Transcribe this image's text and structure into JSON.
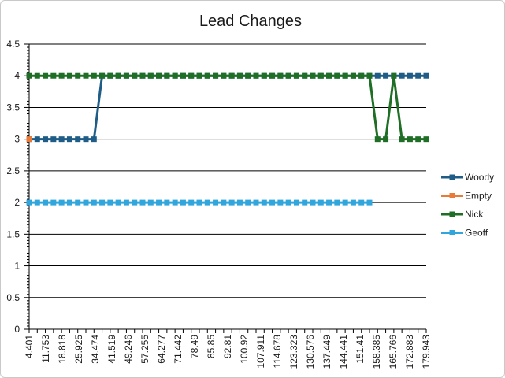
{
  "chart_data": {
    "type": "line",
    "title": "Lead Changes",
    "xlabel": "",
    "ylabel": "",
    "ylim": [
      0,
      4.5
    ],
    "ystep": 0.5,
    "y_tick_labels": [
      "0",
      "0.5",
      "1",
      "1.5",
      "2",
      "2.5",
      "3",
      "3.5",
      "4",
      "4.5"
    ],
    "x_tick_labels": [
      "4.401",
      "11.753",
      "18.818",
      "25.925",
      "34.474",
      "41.519",
      "49.246",
      "57.255",
      "64.277",
      "71.442",
      "78.49",
      "85.85",
      "92.81",
      "100.92",
      "107.911",
      "114.678",
      "123.323",
      "130.576",
      "137.449",
      "144.441",
      "151.41",
      "158.385",
      "165.766",
      "172.883",
      "179.943"
    ],
    "point_count": 50,
    "grid": true,
    "legend_position": "right",
    "series": [
      {
        "name": "Woody",
        "color": "#1f5d86",
        "values": [
          3,
          3,
          3,
          3,
          3,
          3,
          3,
          3,
          3,
          4,
          4,
          4,
          4,
          4,
          4,
          4,
          4,
          4,
          4,
          4,
          4,
          4,
          4,
          4,
          4,
          4,
          4,
          4,
          4,
          4,
          4,
          4,
          4,
          4,
          4,
          4,
          4,
          4,
          4,
          4,
          4,
          4,
          4,
          4,
          4,
          4,
          4,
          4,
          4,
          4
        ]
      },
      {
        "name": "Empty",
        "color": "#e87b3a",
        "values": [
          3,
          null,
          null,
          null,
          null,
          null,
          null,
          null,
          null,
          null,
          null,
          null,
          null,
          null,
          null,
          null,
          null,
          null,
          null,
          null,
          null,
          null,
          null,
          null,
          null,
          null,
          null,
          null,
          null,
          null,
          null,
          null,
          null,
          null,
          null,
          null,
          null,
          null,
          null,
          null,
          null,
          null,
          null,
          null,
          null,
          null,
          null,
          null,
          null,
          null
        ]
      },
      {
        "name": "Nick",
        "color": "#1e6e25",
        "values": [
          4,
          4,
          4,
          4,
          4,
          4,
          4,
          4,
          4,
          4,
          4,
          4,
          4,
          4,
          4,
          4,
          4,
          4,
          4,
          4,
          4,
          4,
          4,
          4,
          4,
          4,
          4,
          4,
          4,
          4,
          4,
          4,
          4,
          4,
          4,
          4,
          4,
          4,
          4,
          4,
          4,
          4,
          4,
          3,
          3,
          4,
          3,
          3,
          3,
          3
        ]
      },
      {
        "name": "Geoff",
        "color": "#31a6dc",
        "values": [
          2,
          2,
          2,
          2,
          2,
          2,
          2,
          2,
          2,
          2,
          2,
          2,
          2,
          2,
          2,
          2,
          2,
          2,
          2,
          2,
          2,
          2,
          2,
          2,
          2,
          2,
          2,
          2,
          2,
          2,
          2,
          2,
          2,
          2,
          2,
          2,
          2,
          2,
          2,
          2,
          2,
          2,
          2,
          null,
          null,
          null,
          null,
          null,
          null,
          null
        ]
      }
    ]
  }
}
